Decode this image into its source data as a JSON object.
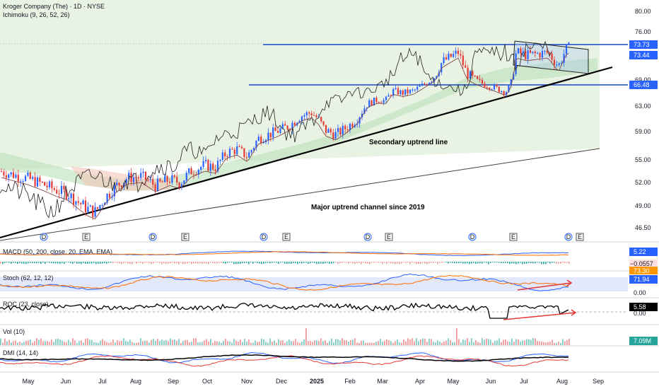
{
  "header": {
    "symbol_line": "Kroger Company (The) · 1D · NYSE",
    "indicator_line": "Ichimoku (9, 26, 52, 26)"
  },
  "chart_data": {
    "type": "candlestick",
    "price_axis": {
      "ticks": [
        "80.00",
        "76.00",
        "73.73",
        "73.44",
        "69.00",
        "66.48",
        "63.00",
        "59.00",
        "55.00",
        "52.00",
        "49.00",
        "46.50"
      ],
      "ylim": [
        45.5,
        81.5
      ]
    },
    "price_tags": [
      {
        "label": "73.73",
        "color": "#2962ff"
      },
      {
        "label": "73.44",
        "color": "#2962ff"
      },
      {
        "label": "66.48",
        "color": "#2962ff"
      }
    ],
    "x_axis": {
      "labels": [
        "May",
        "Jun",
        "Jul",
        "Aug",
        "Sep",
        "Oct",
        "Nov",
        "Dec",
        "2025",
        "Feb",
        "Mar",
        "Apr",
        "May",
        "Jun",
        "Jul",
        "Aug",
        "Sep"
      ]
    },
    "series_path": [
      [
        0,
        53.5
      ],
      [
        20,
        53
      ],
      [
        40,
        52.5
      ],
      [
        60,
        51.8
      ],
      [
        80,
        51.0
      ],
      [
        95,
        50.6
      ],
      [
        110,
        49.5
      ],
      [
        125,
        48.6
      ],
      [
        135,
        48.3
      ],
      [
        150,
        50.2
      ],
      [
        165,
        51.6
      ],
      [
        180,
        52.6
      ],
      [
        200,
        52.8
      ],
      [
        220,
        51.6
      ],
      [
        240,
        52.4
      ],
      [
        255,
        52.0
      ],
      [
        270,
        53.5
      ],
      [
        290,
        54.3
      ],
      [
        305,
        54.0
      ],
      [
        320,
        56.0
      ],
      [
        335,
        56.5
      ],
      [
        350,
        55.5
      ],
      [
        365,
        58.0
      ],
      [
        380,
        58.6
      ],
      [
        395,
        59.2
      ],
      [
        410,
        60.0
      ],
      [
        425,
        61.4
      ],
      [
        440,
        62.0
      ],
      [
        450,
        61.0
      ],
      [
        460,
        59.2
      ],
      [
        475,
        58.6
      ],
      [
        490,
        59.6
      ],
      [
        505,
        61.0
      ],
      [
        520,
        63.6
      ],
      [
        535,
        64.5
      ],
      [
        545,
        64.2
      ],
      [
        555,
        66.5
      ],
      [
        570,
        66.0
      ],
      [
        585,
        66.5
      ],
      [
        600,
        68.0
      ],
      [
        615,
        69.6
      ],
      [
        625,
        71.6
      ],
      [
        635,
        72.2
      ],
      [
        648,
        73.0
      ],
      [
        660,
        70.0
      ],
      [
        670,
        69.0
      ],
      [
        685,
        68.0
      ],
      [
        700,
        67.2
      ],
      [
        715,
        66.2
      ],
      [
        722,
        67.8
      ],
      [
        730,
        73.0
      ],
      [
        745,
        72.6
      ],
      [
        760,
        72.8
      ],
      [
        775,
        73.0
      ],
      [
        790,
        71.0
      ],
      [
        800,
        73.4
      ],
      [
        805,
        73.7
      ]
    ],
    "annotations": [
      "Secondary uptrend line",
      "Major uptrend channel since 2019"
    ],
    "event_markers": [
      "D",
      "E",
      "D",
      "E",
      "D",
      "E",
      "D",
      "E",
      "D",
      "E",
      "D",
      "E"
    ],
    "panels": [
      {
        "label": "MACD (50, 200, close, 20, EMA, EMA)",
        "values": [
          "5.22",
          "−0.0557"
        ]
      },
      {
        "label": "Stoch (62, 12, 12)",
        "values": [
          "73.30",
          "71.94",
          "0.00"
        ]
      },
      {
        "label": "ROC (23, close)",
        "values": [
          "5.58",
          "0.00"
        ]
      },
      {
        "label": "Vol (10)",
        "values": [
          "7.09M"
        ]
      },
      {
        "label": "DMI (14, 14)",
        "values": []
      }
    ]
  }
}
